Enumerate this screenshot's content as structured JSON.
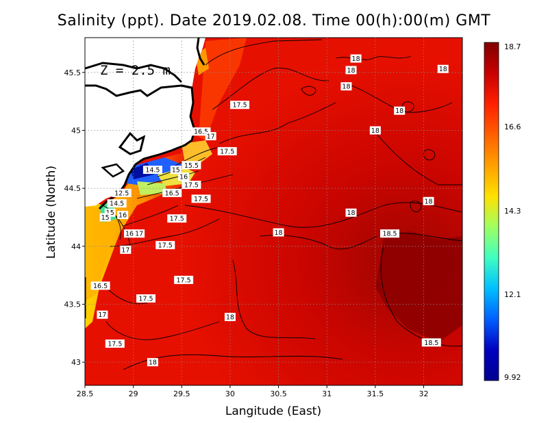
{
  "title": "Salinity (ppt). Date 2019.02.08. Time 00(h):00(m) GMT",
  "depth_label": "Z = 2.5 m",
  "axes": {
    "xlabel": "Langitude (East)",
    "ylabel": "Latitude (North)",
    "xticks": [
      "28.5",
      "29",
      "29.5",
      "30",
      "30.5",
      "31",
      "31.5",
      "32"
    ],
    "yticks": [
      "43",
      "43.5",
      "44",
      "44.5",
      "45",
      "45.5"
    ],
    "xlim": [
      28.5,
      32.4
    ],
    "ylim": [
      42.8,
      45.8
    ]
  },
  "colorbar": {
    "labels": [
      "18.7",
      "16.6",
      "14.3",
      "12.1",
      "9.92"
    ],
    "colors": [
      "#800000",
      "#c80000",
      "#ff2000",
      "#ff6000",
      "#ffa000",
      "#ffe000",
      "#a0ff60",
      "#40ffc0",
      "#00c0ff",
      "#0060ff",
      "#0000c0",
      "#000090"
    ]
  },
  "contour_labels": [
    {
      "text": "18",
      "lon": 31.3,
      "lat": 45.62
    },
    {
      "text": "18",
      "lon": 31.25,
      "lat": 45.52
    },
    {
      "text": "18",
      "lon": 32.2,
      "lat": 45.53
    },
    {
      "text": "18",
      "lon": 31.2,
      "lat": 45.38
    },
    {
      "text": "18",
      "lon": 31.75,
      "lat": 45.17
    },
    {
      "text": "18",
      "lon": 31.5,
      "lat": 45.0
    },
    {
      "text": "17.5",
      "lon": 30.1,
      "lat": 45.22
    },
    {
      "text": "16.5",
      "lon": 29.7,
      "lat": 44.99
    },
    {
      "text": "17",
      "lon": 29.8,
      "lat": 44.95
    },
    {
      "text": "17.5",
      "lon": 29.97,
      "lat": 44.82
    },
    {
      "text": "15.5",
      "lon": 29.6,
      "lat": 44.7
    },
    {
      "text": "14.5",
      "lon": 29.2,
      "lat": 44.66
    },
    {
      "text": "15",
      "lon": 29.44,
      "lat": 44.66
    },
    {
      "text": "16",
      "lon": 29.52,
      "lat": 44.6
    },
    {
      "text": "17.5",
      "lon": 29.6,
      "lat": 44.53
    },
    {
      "text": "16.5",
      "lon": 29.4,
      "lat": 44.46
    },
    {
      "text": "17.5",
      "lon": 29.7,
      "lat": 44.41
    },
    {
      "text": "12.5",
      "lon": 28.88,
      "lat": 44.46
    },
    {
      "text": "14.5",
      "lon": 28.83,
      "lat": 44.37
    },
    {
      "text": "15",
      "lon": 28.76,
      "lat": 44.29
    },
    {
      "text": "15",
      "lon": 28.71,
      "lat": 44.25
    },
    {
      "text": "16",
      "lon": 28.89,
      "lat": 44.27
    },
    {
      "text": "17.5",
      "lon": 29.45,
      "lat": 44.24
    },
    {
      "text": "16",
      "lon": 28.96,
      "lat": 44.11
    },
    {
      "text": "17",
      "lon": 29.06,
      "lat": 44.11
    },
    {
      "text": "17",
      "lon": 28.92,
      "lat": 43.97
    },
    {
      "text": "17.5",
      "lon": 29.33,
      "lat": 44.01
    },
    {
      "text": "18",
      "lon": 30.5,
      "lat": 44.12
    },
    {
      "text": "18",
      "lon": 31.25,
      "lat": 44.29
    },
    {
      "text": "18",
      "lon": 32.05,
      "lat": 44.39
    },
    {
      "text": "18.5",
      "lon": 31.65,
      "lat": 44.11
    },
    {
      "text": "16.5",
      "lon": 28.66,
      "lat": 43.66
    },
    {
      "text": "17.5",
      "lon": 29.52,
      "lat": 43.71
    },
    {
      "text": "17.5",
      "lon": 29.13,
      "lat": 43.55
    },
    {
      "text": "17",
      "lon": 28.68,
      "lat": 43.41
    },
    {
      "text": "18",
      "lon": 30.0,
      "lat": 43.39
    },
    {
      "text": "17.5",
      "lon": 28.81,
      "lat": 43.16
    },
    {
      "text": "18.5",
      "lon": 32.08,
      "lat": 43.17
    },
    {
      "text": "18",
      "lon": 29.2,
      "lat": 43.0
    }
  ]
}
